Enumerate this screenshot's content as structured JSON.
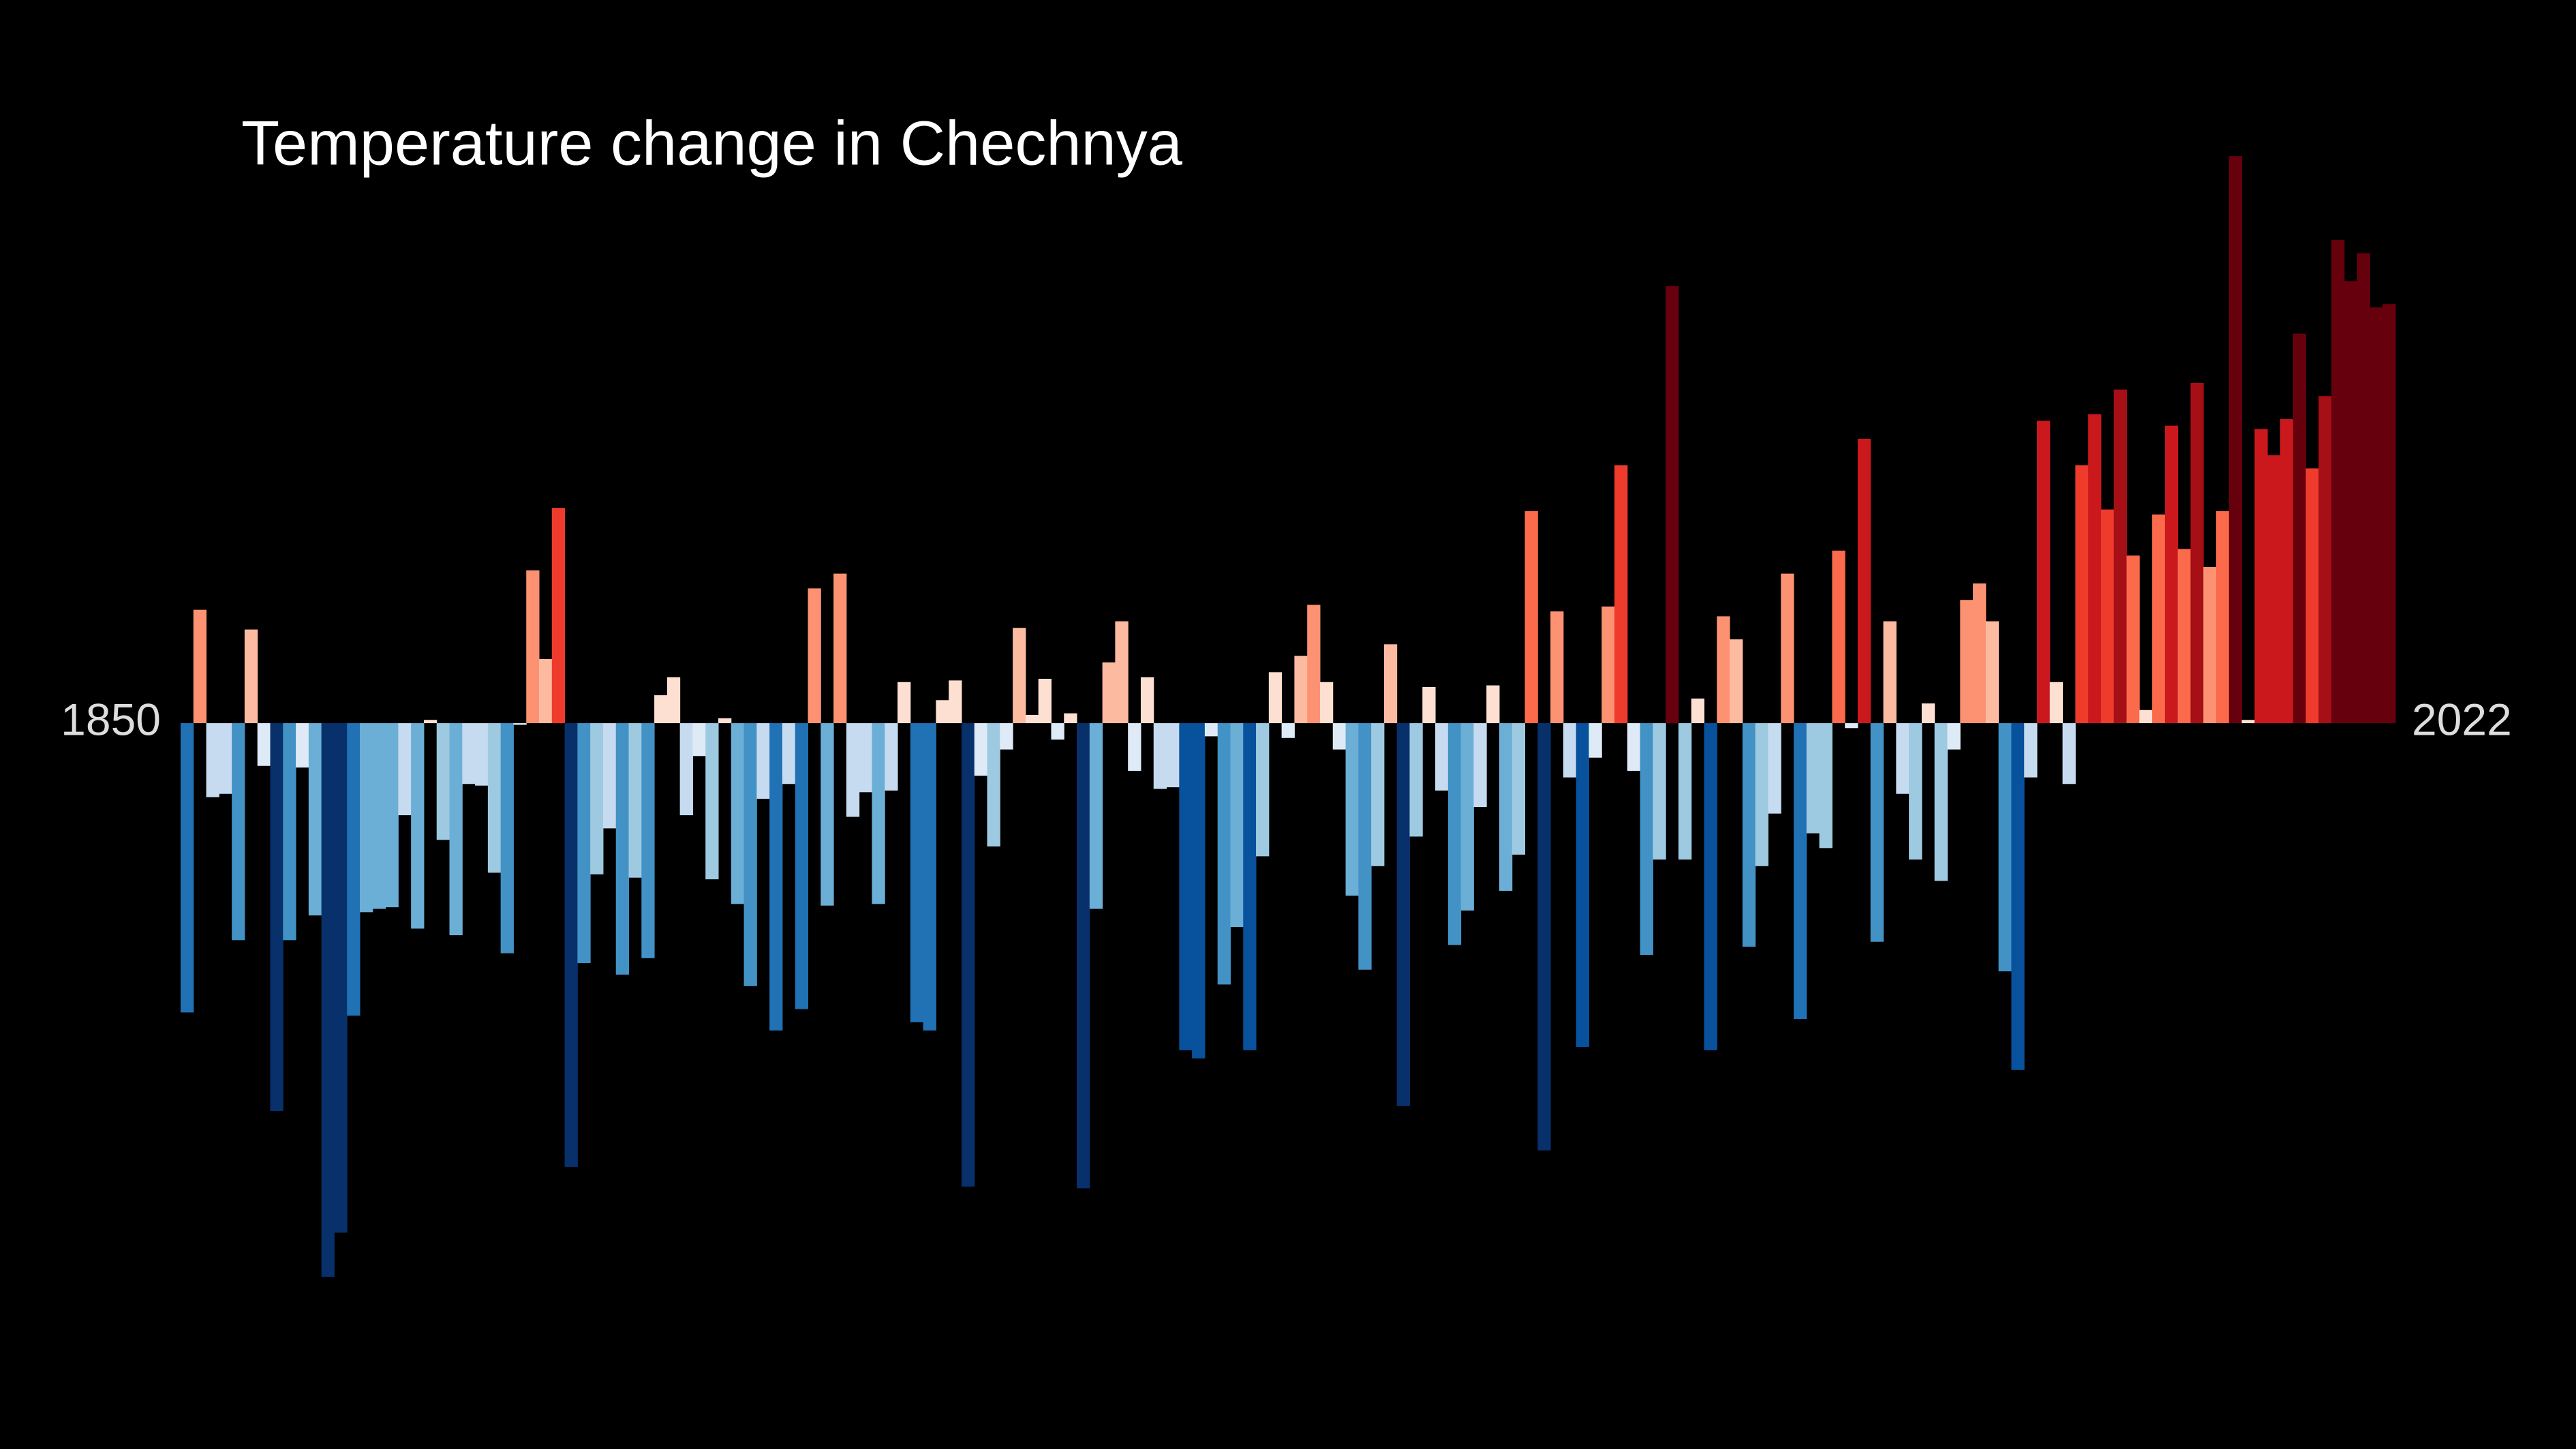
{
  "chart_data": {
    "type": "bar",
    "title": "Temperature change in Chechnya",
    "categories": [
      "1850",
      null,
      null,
      null,
      null,
      null,
      null,
      null,
      null,
      null,
      null,
      null,
      null,
      null,
      null,
      null,
      null,
      null,
      null,
      null,
      null,
      null,
      null,
      null,
      null,
      null,
      null,
      null,
      null,
      null,
      null,
      null,
      null,
      null,
      null,
      null,
      null,
      null,
      null,
      null,
      null,
      null,
      null,
      null,
      null,
      null,
      null,
      null,
      null,
      null,
      null,
      null,
      null,
      null,
      null,
      null,
      null,
      null,
      null,
      null,
      null,
      null,
      null,
      null,
      null,
      null,
      null,
      null,
      null,
      null,
      null,
      null,
      null,
      null,
      null,
      null,
      null,
      null,
      null,
      null,
      null,
      null,
      null,
      null,
      null,
      null,
      null,
      null,
      null,
      null,
      null,
      null,
      null,
      null,
      null,
      null,
      null,
      null,
      null,
      null,
      null,
      null,
      null,
      null,
      null,
      null,
      null,
      null,
      null,
      null,
      null,
      null,
      null,
      null,
      null,
      null,
      null,
      null,
      null,
      null,
      null,
      null,
      null,
      null,
      null,
      null,
      null,
      null,
      null,
      null,
      null,
      null,
      null,
      null,
      null,
      null,
      null,
      null,
      null,
      null,
      null,
      null,
      null,
      null,
      null,
      null,
      null,
      null,
      null,
      null,
      null,
      null,
      null,
      null,
      null,
      null,
      null,
      null,
      null,
      null,
      null,
      null,
      null,
      null,
      null,
      null,
      null,
      null,
      null,
      null,
      null,
      null,
      "2022"
    ],
    "values": [
      -1.76,
      0.69,
      -0.45,
      -0.43,
      -1.32,
      0.57,
      -0.26,
      -2.36,
      -1.32,
      -0.27,
      -1.17,
      -3.37,
      -3.1,
      -1.78,
      -1.15,
      -1.13,
      -1.12,
      -0.56,
      -1.25,
      0.02,
      -0.71,
      -1.29,
      -0.37,
      -0.38,
      -0.91,
      -1.4,
      -0.01,
      0.93,
      0.39,
      1.31,
      -2.7,
      -1.46,
      -0.92,
      -0.64,
      -1.53,
      -0.94,
      -1.43,
      0.17,
      0.28,
      -0.56,
      -0.2,
      -0.95,
      0.03,
      -1.1,
      -1.6,
      -0.46,
      -1.87,
      -0.37,
      -1.74,
      0.82,
      -1.11,
      0.91,
      -0.57,
      -0.42,
      -1.1,
      -0.41,
      0.25,
      -1.82,
      -1.87,
      0.14,
      0.26,
      -2.82,
      -0.32,
      -0.75,
      -0.16,
      0.58,
      0.05,
      0.27,
      -0.1,
      0.06,
      -2.83,
      -1.13,
      0.37,
      0.62,
      -0.29,
      0.28,
      -0.4,
      -0.39,
      -1.99,
      -2.04,
      -0.08,
      -1.59,
      -1.24,
      -1.99,
      -0.81,
      0.31,
      -0.09,
      0.41,
      0.72,
      0.25,
      -0.16,
      -1.05,
      -1.5,
      -0.87,
      0.48,
      -2.33,
      -0.69,
      0.22,
      -0.41,
      -1.35,
      -1.14,
      -0.51,
      0.23,
      -1.02,
      -0.8,
      1.29,
      -2.6,
      0.68,
      -0.33,
      -1.97,
      -0.21,
      0.71,
      1.57,
      -0.29,
      -1.41,
      -0.83,
      2.66,
      -0.83,
      0.15,
      -1.99,
      0.65,
      0.51,
      -1.36,
      -0.87,
      -0.55,
      0.91,
      -1.8,
      -0.67,
      -0.76,
      1.05,
      -0.03,
      1.73,
      -1.33,
      0.62,
      -0.43,
      -0.83,
      0.12,
      -0.96,
      -0.16,
      0.75,
      0.85,
      0.62,
      -1.51,
      -2.11,
      -0.33,
      1.84,
      0.25,
      -0.37,
      1.57,
      1.88,
      1.3,
      2.03,
      1.02,
      0.08,
      1.27,
      1.81,
      1.06,
      2.07,
      0.95,
      1.29,
      3.45,
      0.02,
      1.79,
      1.63,
      1.85,
      2.37,
      1.55,
      1.99,
      2.94,
      2.69,
      2.86,
      2.53,
      2.55
    ],
    "ylim": [
      -3.5,
      3.6
    ],
    "colorscale": [
      "#08306b",
      "#08519c",
      "#2171b5",
      "#4292c6",
      "#6baed6",
      "#9ecae1",
      "#c6dbef",
      "#deebf7",
      "#fee0d2",
      "#fcbba1",
      "#fc9272",
      "#fb6a4a",
      "#ef3b2c",
      "#cb181d",
      "#a50f15",
      "#67000d"
    ],
    "color_limits": [
      -2.6,
      2.6
    ]
  }
}
